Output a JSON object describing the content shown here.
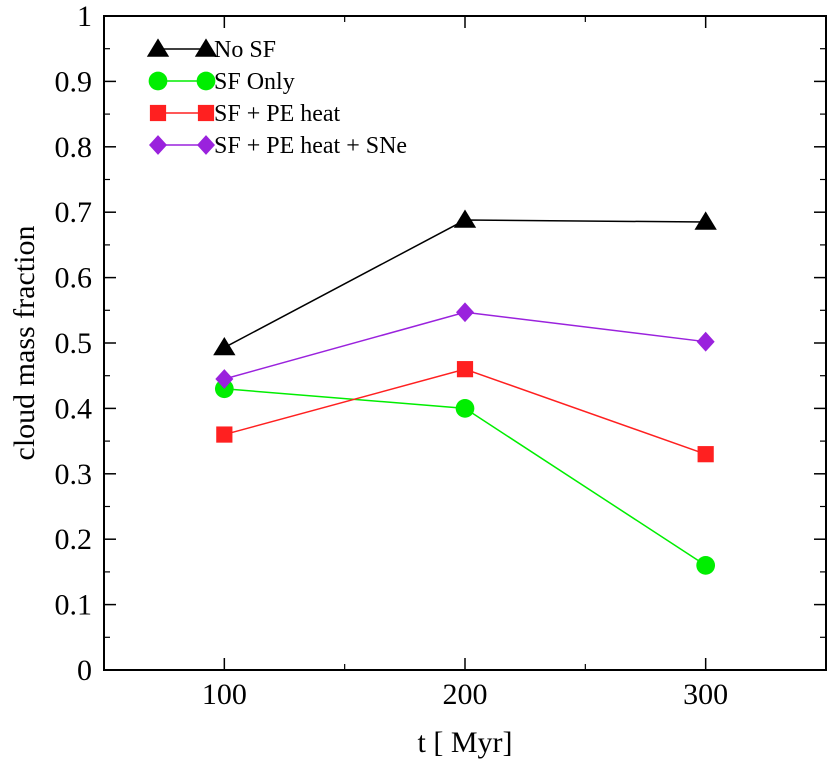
{
  "chart_data": {
    "type": "line",
    "title": "",
    "xlabel": "t [ Myr]",
    "ylabel": "cloud mass fraction",
    "x": [
      100,
      200,
      300
    ],
    "xlim": [
      50,
      350
    ],
    "ylim": [
      0,
      1
    ],
    "xticks": [
      100,
      200,
      300
    ],
    "yticks": [
      0,
      0.1,
      0.2,
      0.3,
      0.4,
      0.5,
      0.6,
      0.7,
      0.8,
      0.9,
      1
    ],
    "ytick_labels": [
      "0",
      "0.1",
      "0.2",
      "0.3",
      "0.4",
      "0.5",
      "0.6",
      "0.7",
      "0.8",
      "0.9",
      "1"
    ],
    "grid": false,
    "legend_position": "top-left",
    "series": [
      {
        "name": "No SF",
        "values": [
          0.493,
          0.688,
          0.685
        ],
        "color": "#000000",
        "marker": "triangle"
      },
      {
        "name": "SF Only",
        "values": [
          0.43,
          0.4,
          0.16
        ],
        "color": "#00ee00",
        "marker": "circle"
      },
      {
        "name": "SF + PE heat",
        "values": [
          0.36,
          0.46,
          0.33
        ],
        "color": "#ff2020",
        "marker": "square"
      },
      {
        "name": "SF + PE heat + SNe",
        "values": [
          0.445,
          0.547,
          0.502
        ],
        "color": "#9a22dd",
        "marker": "diamond"
      }
    ]
  }
}
